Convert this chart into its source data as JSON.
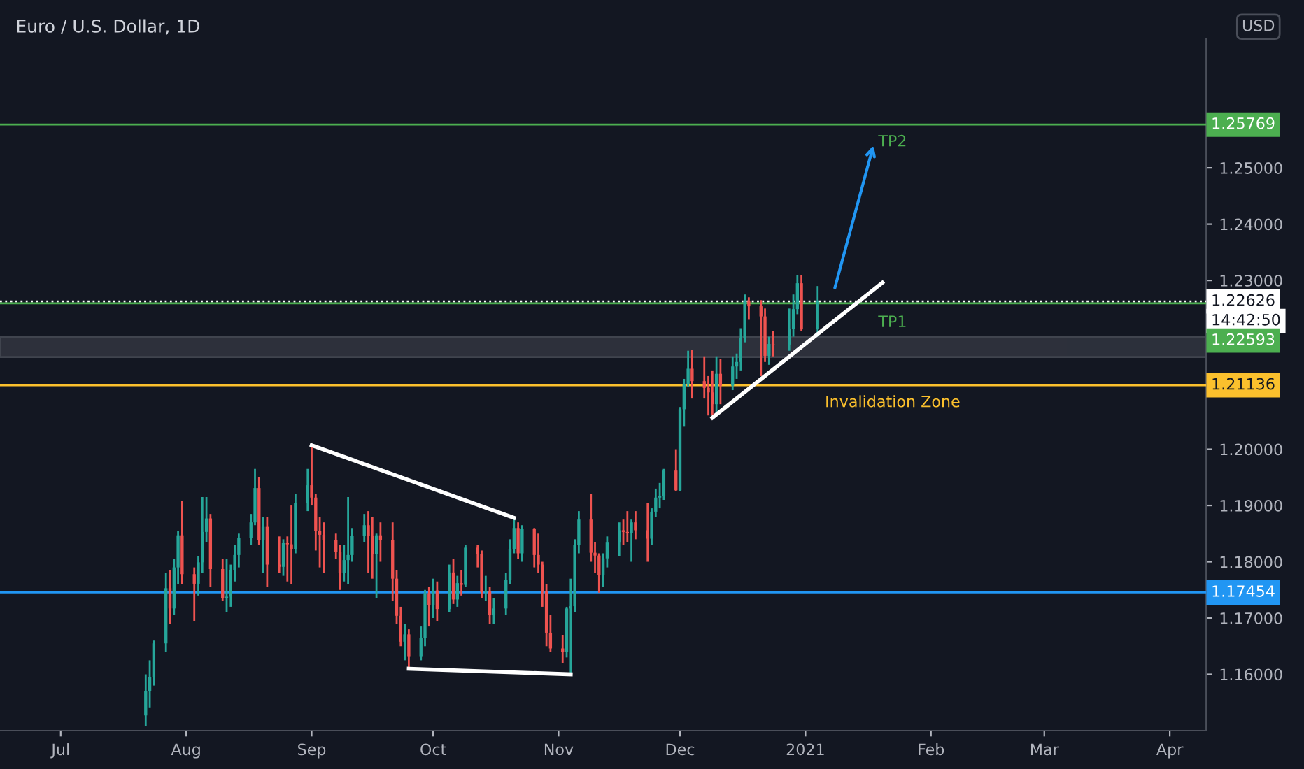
{
  "chart_data": {
    "type": "candlestick",
    "title": "Euro / U.S. Dollar, 1D",
    "xlim": [
      "2020-06-16",
      "2021-04-10"
    ],
    "ylim": [
      1.15,
      1.273
    ],
    "xticks": [
      {
        "value": "2020-07-01",
        "label": "Jul"
      },
      {
        "value": "2020-08-01",
        "label": "Aug"
      },
      {
        "value": "2020-09-01",
        "label": "Sep"
      },
      {
        "value": "2020-10-01",
        "label": "Oct"
      },
      {
        "value": "2020-11-01",
        "label": "Nov"
      },
      {
        "value": "2020-12-01",
        "label": "Dec"
      },
      {
        "value": "2021-01-01",
        "label": "2021"
      },
      {
        "value": "2021-02-01",
        "label": "Feb"
      },
      {
        "value": "2021-03-01",
        "label": "Mar"
      },
      {
        "value": "2021-04-01",
        "label": "Apr"
      }
    ],
    "yticks": [
      {
        "value": 1.16,
        "label": "1.16000"
      },
      {
        "value": 1.17,
        "label": "1.17000"
      },
      {
        "value": 1.18,
        "label": "1.18000"
      },
      {
        "value": 1.19,
        "label": "1.19000"
      },
      {
        "value": 1.2,
        "label": "1.20000"
      },
      {
        "value": 1.23,
        "label": "1.23000"
      },
      {
        "value": 1.24,
        "label": "1.24000"
      },
      {
        "value": 1.25,
        "label": "1.25000"
      }
    ],
    "series": [
      {
        "colors": [
          "#26a69a",
          "#26a69a",
          "#26a69a",
          "#26a69a",
          "#ef5350",
          "#26a69a",
          "#26a69a",
          "#ef5350",
          "#ef5350",
          "#26a69a",
          "#26a69a",
          "#26a69a",
          "#ef5350",
          "#ef5350",
          "#26a69a",
          "#26a69a",
          "#26a69a",
          "#26a69a",
          "#26a69a",
          "#26a69a",
          "#ef5350",
          "#26a69a",
          "#ef5350",
          "#ef5350",
          "#26a69a",
          "#ef5350",
          "#ef5350",
          "#26a69a",
          "#26a69a",
          "#ef5350",
          "#ef5350",
          "#ef5350",
          "#ef5350",
          "#ef5350",
          "#ef5350",
          "#26a69a",
          "#26a69a",
          "#26a69a",
          "#26a69a",
          "#ef5350",
          "#ef5350",
          "#26a69a",
          "#ef5350",
          "#ef5350",
          "#ef5350",
          "#ef5350",
          "#26a69a",
          "#ef5350",
          "#26a69a",
          "#26a69a",
          "#ef5350",
          "#26a69a",
          "#ef5350",
          "#26a69a",
          "#ef5350",
          "#26a69a",
          "#ef5350",
          "#26a69a",
          "#ef5350",
          "#ef5350",
          "#26a69a",
          "#ef5350",
          "#26a69a",
          "#26a69a",
          "#26a69a",
          "#26a69a",
          "#ef5350",
          "#26a69a",
          "#ef5350",
          "#ef5350",
          "#ef5350",
          "#ef5350",
          "#ef5350",
          "#ef5350",
          "#26a69a",
          "#26a69a",
          "#26a69a",
          "#26a69a",
          "#ef5350",
          "#ef5350",
          "#ef5350",
          "#26a69a",
          "#26a69a",
          "#26a69a",
          "#ef5350",
          "#ef5350",
          "#26a69a",
          "#ef5350",
          "#ef5350",
          "#26a69a",
          "#26a69a",
          "#26a69a",
          "#26a69a",
          "#ef5350",
          "#26a69a",
          "#26a69a",
          "#26a69a",
          "#ef5350",
          "#ef5350",
          "#ef5350",
          "#ef5350",
          "#26a69a",
          "#ef5350",
          "#26a69a",
          "#26a69a",
          "#26a69a",
          "#26a69a",
          "#ef5350",
          "#ef5350",
          "#ef5350",
          "#26a69a",
          "#ef5350",
          "#26a69a",
          "#26a69a",
          "#26a69a",
          "#ef5350",
          "#26a69a"
        ],
        "x": [
          "2020-07-22",
          "2020-07-23",
          "2020-07-24",
          "2020-07-27",
          "2020-07-28",
          "2020-07-29",
          "2020-07-30",
          "2020-07-31",
          "2020-08-03",
          "2020-08-04",
          "2020-08-05",
          "2020-08-06",
          "2020-08-07",
          "2020-08-10",
          "2020-08-11",
          "2020-08-12",
          "2020-08-13",
          "2020-08-14",
          "2020-08-17",
          "2020-08-18",
          "2020-08-19",
          "2020-08-20",
          "2020-08-21",
          "2020-08-24",
          "2020-08-25",
          "2020-08-26",
          "2020-08-27",
          "2020-08-28",
          "2020-08-31",
          "2020-09-01",
          "2020-09-02",
          "2020-09-03",
          "2020-09-04",
          "2020-09-07",
          "2020-09-08",
          "2020-09-09",
          "2020-09-10",
          "2020-09-11",
          "2020-09-14",
          "2020-09-15",
          "2020-09-16",
          "2020-09-17",
          "2020-09-18",
          "2020-09-21",
          "2020-09-22",
          "2020-09-23",
          "2020-09-24",
          "2020-09-25",
          "2020-09-28",
          "2020-09-29",
          "2020-09-30",
          "2020-10-01",
          "2020-10-02",
          "2020-10-05",
          "2020-10-06",
          "2020-10-07",
          "2020-10-08",
          "2020-10-09",
          "2020-10-12",
          "2020-10-13",
          "2020-10-14",
          "2020-10-15",
          "2020-10-16",
          "2020-10-19",
          "2020-10-20",
          "2020-10-21",
          "2020-10-22",
          "2020-10-23",
          "2020-10-26",
          "2020-10-27",
          "2020-10-28",
          "2020-10-29",
          "2020-10-30",
          "2020-11-02",
          "2020-11-03",
          "2020-11-04",
          "2020-11-05",
          "2020-11-06",
          "2020-11-09",
          "2020-11-10",
          "2020-11-11",
          "2020-11-12",
          "2020-11-13",
          "2020-11-16",
          "2020-11-17",
          "2020-11-18",
          "2020-11-19",
          "2020-11-20",
          "2020-11-23",
          "2020-11-24",
          "2020-11-25",
          "2020-11-26",
          "2020-11-27",
          "2020-11-30",
          "2020-12-01",
          "2020-12-02",
          "2020-12-03",
          "2020-12-04",
          "2020-12-07",
          "2020-12-08",
          "2020-12-09",
          "2020-12-10",
          "2020-12-11",
          "2020-12-14",
          "2020-12-15",
          "2020-12-16",
          "2020-12-17",
          "2020-12-18",
          "2020-12-21",
          "2020-12-22",
          "2020-12-23",
          "2020-12-24",
          "2020-12-28",
          "2020-12-29",
          "2020-12-30",
          "2020-12-31",
          "2021-01-04"
        ],
        "ohlc": [
          [
            1.1527,
            1.16,
            1.1508,
            1.157
          ],
          [
            1.157,
            1.1625,
            1.154,
            1.1595
          ],
          [
            1.1595,
            1.166,
            1.158,
            1.1655
          ],
          [
            1.1655,
            1.178,
            1.164,
            1.1753
          ],
          [
            1.1753,
            1.1785,
            1.169,
            1.1717
          ],
          [
            1.1717,
            1.1805,
            1.1705,
            1.179
          ],
          [
            1.179,
            1.1855,
            1.176,
            1.1847
          ],
          [
            1.1847,
            1.1908,
            1.176,
            1.1778
          ],
          [
            1.1778,
            1.179,
            1.1695,
            1.1761
          ],
          [
            1.1761,
            1.181,
            1.174,
            1.1799
          ],
          [
            1.1799,
            1.1915,
            1.178,
            1.1853
          ],
          [
            1.1853,
            1.1915,
            1.1835,
            1.1877
          ],
          [
            1.1877,
            1.1885,
            1.1755,
            1.1787
          ],
          [
            1.1787,
            1.1805,
            1.173,
            1.1735
          ],
          [
            1.1735,
            1.1805,
            1.171,
            1.1738
          ],
          [
            1.1738,
            1.1795,
            1.172,
            1.1785
          ],
          [
            1.1785,
            1.183,
            1.1765,
            1.1812
          ],
          [
            1.1812,
            1.185,
            1.179,
            1.1842
          ],
          [
            1.1842,
            1.1885,
            1.183,
            1.187
          ],
          [
            1.187,
            1.1965,
            1.1865,
            1.1931
          ],
          [
            1.1931,
            1.195,
            1.183,
            1.1839
          ],
          [
            1.1839,
            1.188,
            1.178,
            1.1862
          ],
          [
            1.1862,
            1.188,
            1.1755,
            1.1795
          ],
          [
            1.1795,
            1.1845,
            1.178,
            1.1791
          ],
          [
            1.1791,
            1.184,
            1.1775,
            1.1833
          ],
          [
            1.1833,
            1.1845,
            1.1765,
            1.1831
          ],
          [
            1.1831,
            1.19,
            1.176,
            1.1822
          ],
          [
            1.1822,
            1.192,
            1.1815,
            1.1904
          ],
          [
            1.1904,
            1.1965,
            1.189,
            1.1936
          ],
          [
            1.1936,
            1.2007,
            1.19,
            1.1914
          ],
          [
            1.1914,
            1.192,
            1.182,
            1.1855
          ],
          [
            1.1855,
            1.188,
            1.179,
            1.1848
          ],
          [
            1.1848,
            1.187,
            1.178,
            1.1838
          ],
          [
            1.1838,
            1.185,
            1.1805,
            1.1817
          ],
          [
            1.1817,
            1.183,
            1.175,
            1.178
          ],
          [
            1.178,
            1.183,
            1.1765,
            1.1803
          ],
          [
            1.1803,
            1.1915,
            1.176,
            1.1812
          ],
          [
            1.1812,
            1.186,
            1.18,
            1.1846
          ],
          [
            1.1846,
            1.1885,
            1.1835,
            1.1865
          ],
          [
            1.1865,
            1.189,
            1.178,
            1.1846
          ],
          [
            1.1846,
            1.188,
            1.177,
            1.1814
          ],
          [
            1.1814,
            1.185,
            1.1735,
            1.1847
          ],
          [
            1.1847,
            1.187,
            1.18,
            1.1838
          ],
          [
            1.1838,
            1.187,
            1.173,
            1.177
          ],
          [
            1.177,
            1.1785,
            1.169,
            1.1704
          ],
          [
            1.1704,
            1.172,
            1.165,
            1.1658
          ],
          [
            1.1658,
            1.169,
            1.1625,
            1.1671
          ],
          [
            1.1671,
            1.168,
            1.1612,
            1.1631
          ],
          [
            1.1631,
            1.1685,
            1.1625,
            1.1665
          ],
          [
            1.1665,
            1.175,
            1.165,
            1.1744
          ],
          [
            1.1744,
            1.1755,
            1.1685,
            1.1723
          ],
          [
            1.1723,
            1.177,
            1.17,
            1.1749
          ],
          [
            1.1749,
            1.1765,
            1.1695,
            1.1716
          ],
          [
            1.1716,
            1.1795,
            1.171,
            1.1781
          ],
          [
            1.1781,
            1.1805,
            1.1725,
            1.1733
          ],
          [
            1.1733,
            1.1775,
            1.172,
            1.1762
          ],
          [
            1.1762,
            1.1785,
            1.174,
            1.1759
          ],
          [
            1.1759,
            1.183,
            1.1755,
            1.1825
          ],
          [
            1.1825,
            1.183,
            1.179,
            1.1814
          ],
          [
            1.1814,
            1.182,
            1.1735,
            1.1746
          ],
          [
            1.1746,
            1.1775,
            1.173,
            1.1747
          ],
          [
            1.1747,
            1.1755,
            1.169,
            1.1706
          ],
          [
            1.1706,
            1.1735,
            1.169,
            1.1717
          ],
          [
            1.1717,
            1.178,
            1.1705,
            1.1768
          ],
          [
            1.1768,
            1.184,
            1.176,
            1.1823
          ],
          [
            1.1823,
            1.188,
            1.1815,
            1.186
          ],
          [
            1.186,
            1.187,
            1.1805,
            1.1815
          ],
          [
            1.1815,
            1.1865,
            1.18,
            1.1859
          ],
          [
            1.1859,
            1.186,
            1.179,
            1.1812
          ],
          [
            1.1812,
            1.185,
            1.178,
            1.1795
          ],
          [
            1.1795,
            1.18,
            1.172,
            1.1747
          ],
          [
            1.1747,
            1.176,
            1.165,
            1.1674
          ],
          [
            1.1674,
            1.1705,
            1.164,
            1.1646
          ],
          [
            1.1646,
            1.167,
            1.162,
            1.164
          ],
          [
            1.164,
            1.172,
            1.163,
            1.1717
          ],
          [
            1.1717,
            1.177,
            1.1603,
            1.1721
          ],
          [
            1.1721,
            1.184,
            1.171,
            1.183
          ],
          [
            1.183,
            1.189,
            1.1815,
            1.1875
          ],
          [
            1.1875,
            1.192,
            1.18,
            1.1816
          ],
          [
            1.1816,
            1.1835,
            1.178,
            1.1811
          ],
          [
            1.1811,
            1.1815,
            1.1745,
            1.1776
          ],
          [
            1.1776,
            1.1815,
            1.1755,
            1.1806
          ],
          [
            1.1806,
            1.1845,
            1.179,
            1.1834
          ],
          [
            1.1834,
            1.187,
            1.181,
            1.1856
          ],
          [
            1.1856,
            1.1875,
            1.183,
            1.1853
          ],
          [
            1.1853,
            1.189,
            1.1835,
            1.1851
          ],
          [
            1.1851,
            1.1875,
            1.18,
            1.187
          ],
          [
            1.187,
            1.189,
            1.184,
            1.1856
          ],
          [
            1.1856,
            1.1905,
            1.18,
            1.1841
          ],
          [
            1.1841,
            1.1895,
            1.183,
            1.1889
          ],
          [
            1.1889,
            1.193,
            1.188,
            1.1914
          ],
          [
            1.1914,
            1.194,
            1.1895,
            1.1917
          ],
          [
            1.1917,
            1.1965,
            1.191,
            1.1962
          ],
          [
            1.1962,
            1.2,
            1.1925,
            1.1927
          ],
          [
            1.1927,
            1.2075,
            1.1925,
            1.2071
          ],
          [
            1.2071,
            1.2125,
            1.204,
            1.2115
          ],
          [
            1.2115,
            1.2175,
            1.211,
            1.2143
          ],
          [
            1.2143,
            1.2177,
            1.209,
            1.2121
          ],
          [
            1.2121,
            1.2165,
            1.209,
            1.2109
          ],
          [
            1.2109,
            1.213,
            1.206,
            1.2101
          ],
          [
            1.2101,
            1.214,
            1.206,
            1.208
          ],
          [
            1.208,
            1.2165,
            1.206,
            1.2134
          ],
          [
            1.2134,
            1.216,
            1.208,
            1.2113
          ],
          [
            1.2113,
            1.2165,
            1.2105,
            1.2147
          ],
          [
            1.2147,
            1.217,
            1.2125,
            1.2155
          ],
          [
            1.2155,
            1.2215,
            1.214,
            1.2197
          ],
          [
            1.2197,
            1.2275,
            1.219,
            1.2263
          ],
          [
            1.2263,
            1.227,
            1.223,
            1.2254
          ],
          [
            1.2254,
            1.2265,
            1.213,
            1.2236
          ],
          [
            1.2236,
            1.225,
            1.2155,
            1.2166
          ],
          [
            1.2166,
            1.22,
            1.215,
            1.2187
          ],
          [
            1.2187,
            1.221,
            1.2165,
            1.2186
          ],
          [
            1.2186,
            1.225,
            1.2175,
            1.2214
          ],
          [
            1.2214,
            1.2275,
            1.22,
            1.2249
          ],
          [
            1.2249,
            1.231,
            1.224,
            1.2295
          ],
          [
            1.2295,
            1.231,
            1.221,
            1.2213
          ],
          [
            1.2213,
            1.229,
            1.22,
            1.2263
          ]
        ]
      },
      {
        "type": "line",
        "color": "#ffffff",
        "x": [
          "2020-09-01",
          "2020-10-21"
        ],
        "values": [
          1.2007,
          1.1878
        ]
      },
      {
        "type": "line",
        "color": "#ffffff",
        "x": [
          "2020-09-25",
          "2020-11-04"
        ],
        "values": [
          1.161,
          1.16
        ]
      },
      {
        "type": "line",
        "color": "#ffffff",
        "x": [
          "2020-12-09",
          "2021-01-20"
        ],
        "values": [
          1.2056,
          1.2296
        ]
      }
    ],
    "ref_lines": [
      {
        "axis": "y",
        "value": 1.25769,
        "label": "1.25769",
        "color": "#4caf50",
        "line_style": "solid"
      },
      {
        "axis": "y",
        "value": 1.22626,
        "label": "1.22626",
        "color": "#ffffff",
        "line_style": "dotted"
      },
      {
        "axis": "y",
        "value": 1.22593,
        "label": "1.22593",
        "color": "#4caf50",
        "line_style": "solid"
      },
      {
        "axis": "y",
        "value": 1.21136,
        "label": "1.21136",
        "color": "#fbc02d",
        "line_style": "solid"
      },
      {
        "axis": "y",
        "value": 1.17454,
        "label": "1.17454",
        "color": "#2196f3",
        "line_style": "solid"
      }
    ],
    "bands": [
      {
        "axis": "y",
        "from": 1.2164,
        "to": 1.22,
        "color": "#5d606b"
      }
    ],
    "annotations": [
      "TP2",
      "TP1",
      "Invalidation Zone",
      "USD",
      "14:42:50"
    ]
  }
}
